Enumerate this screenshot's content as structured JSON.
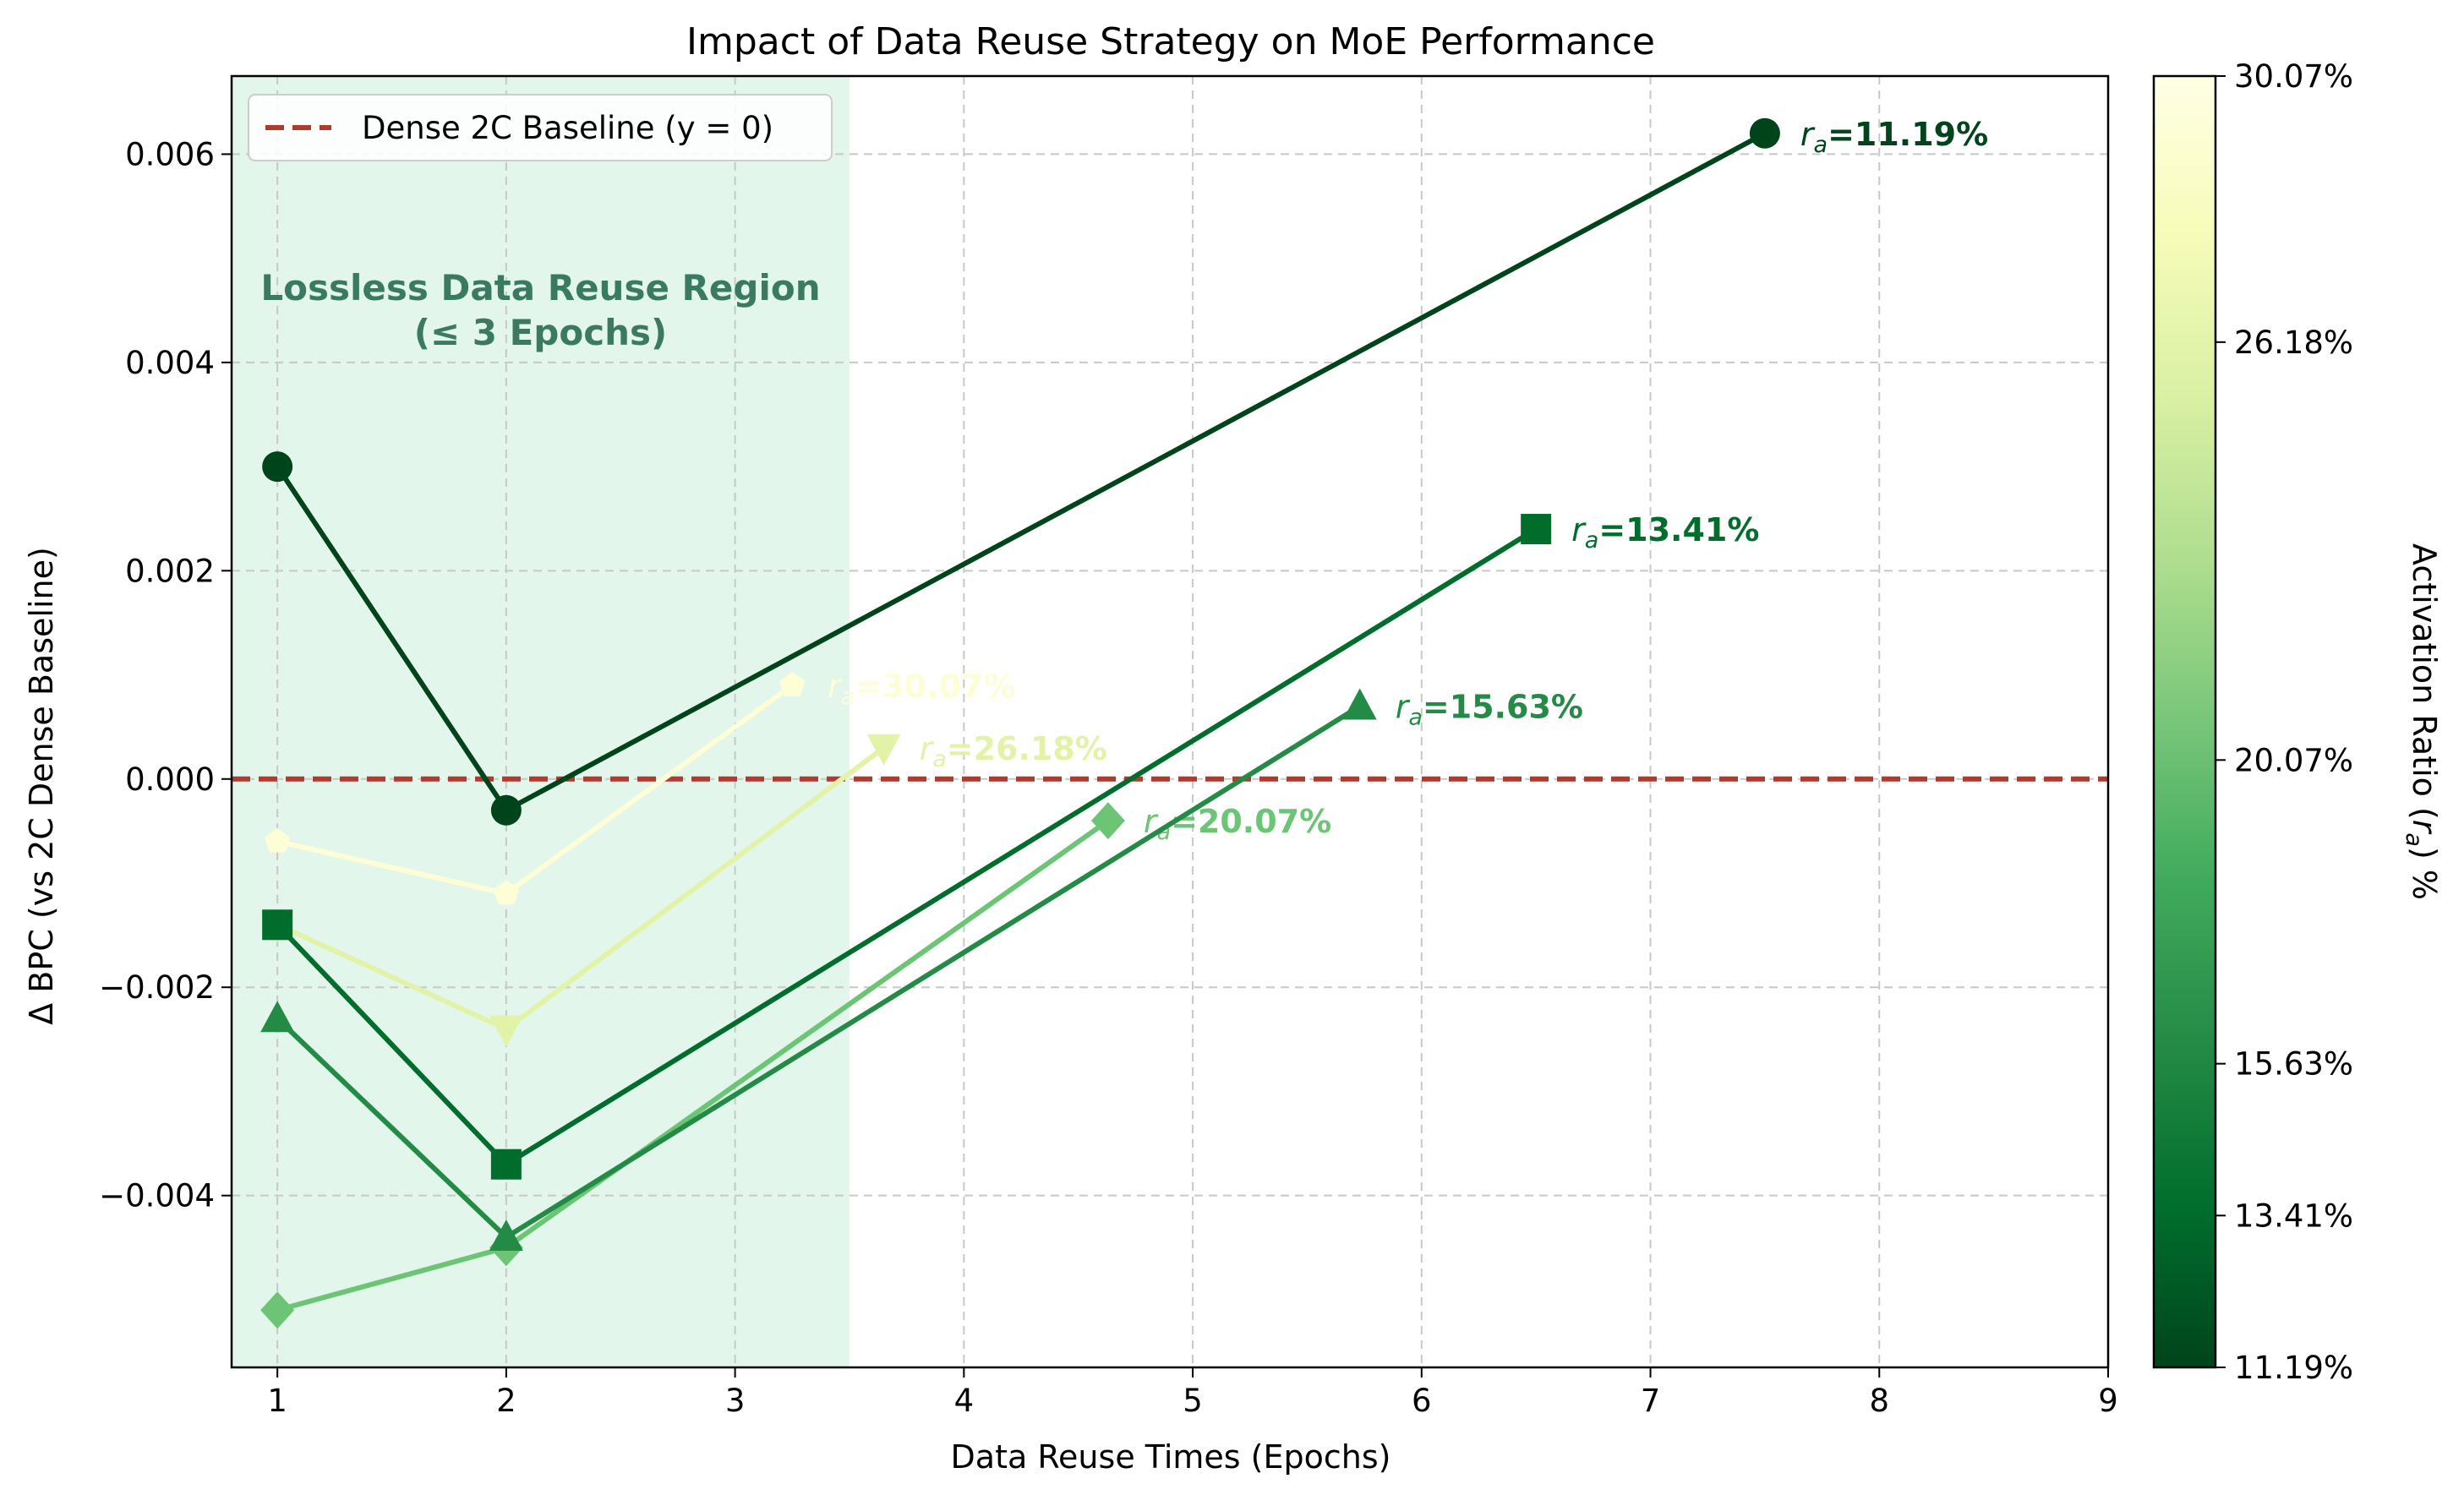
{
  "chart_data": {
    "type": "line",
    "title": "Impact of Data Reuse Strategy on MoE Performance",
    "xlabel": "Data Reuse Times (Epochs)",
    "ylabel": "Δ BPC (vs 2C Dense Baseline)",
    "xlim": [
      0.8,
      9.0
    ],
    "ylim": [
      -0.00565,
      0.00675
    ],
    "x_ticks": [
      "1",
      "2",
      "3",
      "4",
      "5",
      "6",
      "7",
      "8",
      "9"
    ],
    "y_ticks": [
      "−0.004",
      "−0.002",
      "0.000",
      "0.002",
      "0.004",
      "0.006"
    ],
    "grid": true,
    "baseline": {
      "label": "Dense 2C Baseline (y = 0)",
      "y": 0,
      "color": "#b03a2e",
      "style": "dashed"
    },
    "legend_position": "top-left",
    "shaded_region": {
      "x_range": [
        0.8,
        3.5
      ],
      "color": "#e3f6ec",
      "label_line1": "Lossless Data Reuse Region",
      "label_line2": "(≤ 3 Epochs)"
    },
    "series": [
      {
        "label_suffix": "=11.19%",
        "marker": "circle",
        "color": "#00441b",
        "x": [
          1,
          2,
          7.5
        ],
        "y": [
          0.003,
          -0.0003,
          0.0062
        ]
      },
      {
        "label_suffix": "=13.41%",
        "marker": "square",
        "color": "#006d2c",
        "x": [
          1,
          2,
          6.5
        ],
        "y": [
          -0.0014,
          -0.0037,
          0.0024
        ]
      },
      {
        "label_suffix": "=15.63%",
        "marker": "triangle-up",
        "color": "#238b45",
        "x": [
          1,
          2,
          5.73
        ],
        "y": [
          -0.0023,
          -0.0044,
          0.0007
        ]
      },
      {
        "label_suffix": "=20.07%",
        "marker": "diamond",
        "color": "#6cc475",
        "x": [
          1,
          2,
          4.63
        ],
        "y": [
          -0.0051,
          -0.0045,
          -0.0004
        ]
      },
      {
        "label_suffix": "=26.18%",
        "marker": "triangle-down",
        "color": "#e2f3a8",
        "x": [
          1,
          2,
          3.65
        ],
        "y": [
          -0.0014,
          -0.0024,
          0.0003
        ]
      },
      {
        "label_suffix": "=30.07%",
        "marker": "pentagon",
        "color": "#fdfed6",
        "x": [
          1,
          2,
          3.25
        ],
        "y": [
          -0.0006,
          -0.0011,
          0.0009
        ]
      }
    ],
    "colorbar": {
      "label": "Activation Ratio (r_a) %",
      "ticks": [
        "30.07%",
        "26.18%",
        "20.07%",
        "15.63%",
        "13.41%",
        "11.19%"
      ],
      "tick_values": [
        30.07,
        26.18,
        20.07,
        15.63,
        13.41,
        11.19
      ],
      "range": [
        11.19,
        30.07
      ],
      "colormap": "YlGn"
    }
  }
}
